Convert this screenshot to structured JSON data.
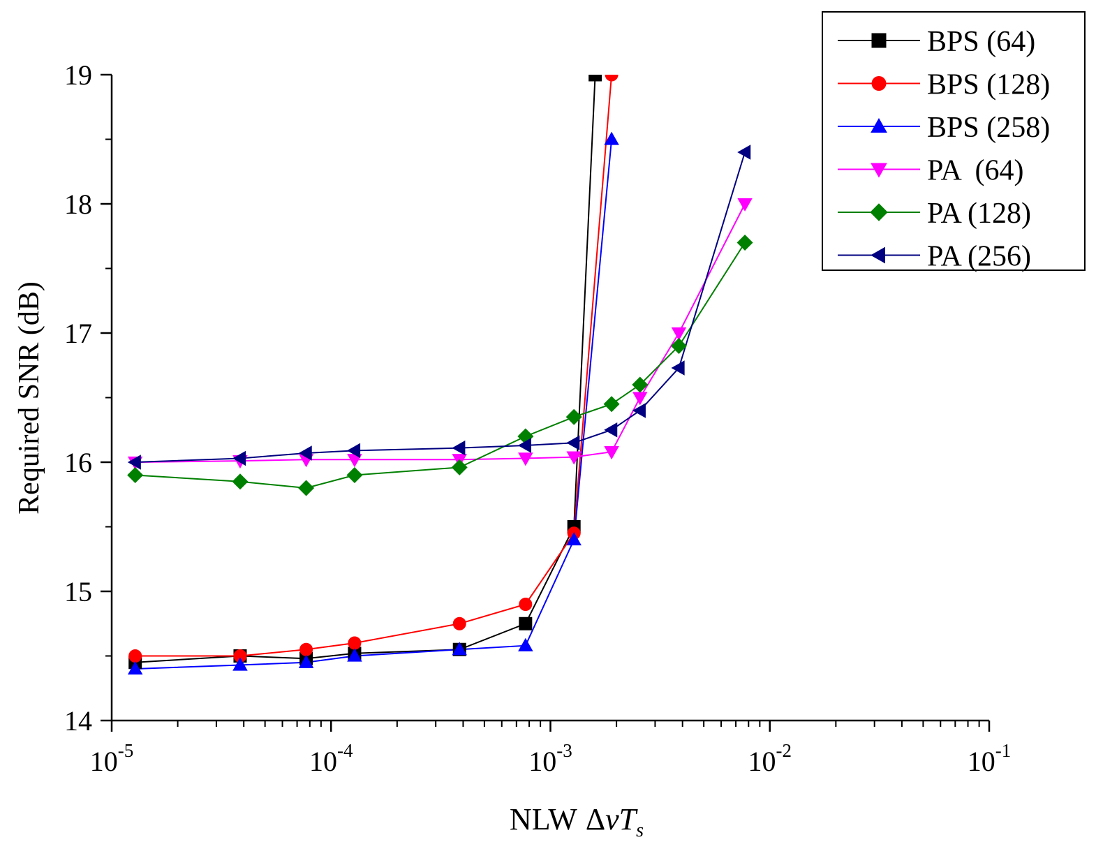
{
  "chart_data": {
    "type": "line",
    "title": "",
    "xlabel_prefix": "NLW",
    "xlabel_symbol_delta": "Δ",
    "xlabel_symbol_nu": "v",
    "xlabel_symbol_T": "T",
    "xlabel_symbol_sub": "s",
    "ylabel": "Required SNR (dB)",
    "xscale": "log",
    "xlim": [
      1e-05,
      0.1
    ],
    "ylim": [
      14,
      19
    ],
    "x_ticks": [
      {
        "base": "10",
        "exp": "-5"
      },
      {
        "base": "10",
        "exp": "-4"
      },
      {
        "base": "10",
        "exp": "-3"
      },
      {
        "base": "10",
        "exp": "-2"
      },
      {
        "base": "10",
        "exp": "-1"
      }
    ],
    "y_ticks": [
      "14",
      "15",
      "16",
      "17",
      "18",
      "19"
    ],
    "grid": false,
    "legend_position": "top-right",
    "series": [
      {
        "name": "BPS (64)",
        "color": "#000000",
        "marker": "square",
        "points": [
          [
            1.28e-05,
            14.45
          ],
          [
            3.85e-05,
            14.5
          ],
          [
            7.7e-05,
            14.48
          ],
          [
            0.000128,
            14.52
          ],
          [
            0.000385,
            14.55
          ],
          [
            0.00077,
            14.75
          ],
          [
            0.00128,
            15.5
          ],
          [
            0.0016,
            19.0
          ]
        ]
      },
      {
        "name": "BPS (128)",
        "color": "#ff0000",
        "marker": "circle",
        "points": [
          [
            1.28e-05,
            14.5
          ],
          [
            3.85e-05,
            14.5
          ],
          [
            7.7e-05,
            14.55
          ],
          [
            0.000128,
            14.6
          ],
          [
            0.000385,
            14.75
          ],
          [
            0.00077,
            14.9
          ],
          [
            0.00128,
            15.45
          ],
          [
            0.0019,
            19.0
          ]
        ]
      },
      {
        "name": "BPS (258)",
        "color": "#0000ff",
        "marker": "triangle-up",
        "points": [
          [
            1.28e-05,
            14.4
          ],
          [
            3.85e-05,
            14.43
          ],
          [
            7.7e-05,
            14.45
          ],
          [
            0.000128,
            14.5
          ],
          [
            0.000385,
            14.55
          ],
          [
            0.00077,
            14.58
          ],
          [
            0.00128,
            15.4
          ],
          [
            0.0019,
            18.5
          ]
        ]
      },
      {
        "name": "PA  (64)",
        "color": "#ff00ff",
        "marker": "triangle-down",
        "points": [
          [
            1.28e-05,
            16.0
          ],
          [
            3.85e-05,
            16.01
          ],
          [
            7.7e-05,
            16.02
          ],
          [
            0.000128,
            16.02
          ],
          [
            0.000385,
            16.02
          ],
          [
            0.00077,
            16.03
          ],
          [
            0.00128,
            16.04
          ],
          [
            0.0019,
            16.08
          ],
          [
            0.00256,
            16.5
          ],
          [
            0.00385,
            17.0
          ],
          [
            0.0077,
            18.0
          ]
        ]
      },
      {
        "name": "PA (128)",
        "color": "#008000",
        "marker": "diamond",
        "points": [
          [
            1.28e-05,
            15.9
          ],
          [
            3.85e-05,
            15.85
          ],
          [
            7.7e-05,
            15.8
          ],
          [
            0.000128,
            15.9
          ],
          [
            0.000385,
            15.96
          ],
          [
            0.00077,
            16.2
          ],
          [
            0.00128,
            16.35
          ],
          [
            0.0019,
            16.45
          ],
          [
            0.00256,
            16.6
          ],
          [
            0.00385,
            16.9
          ],
          [
            0.0077,
            17.7
          ]
        ]
      },
      {
        "name": "PA (256)",
        "color": "#000080",
        "marker": "triangle-left",
        "points": [
          [
            1.28e-05,
            16.0
          ],
          [
            3.85e-05,
            16.03
          ],
          [
            7.7e-05,
            16.07
          ],
          [
            0.000128,
            16.09
          ],
          [
            0.000385,
            16.11
          ],
          [
            0.00077,
            16.13
          ],
          [
            0.00128,
            16.15
          ],
          [
            0.0019,
            16.25
          ],
          [
            0.00256,
            16.4
          ],
          [
            0.00385,
            16.73
          ],
          [
            0.0077,
            18.4
          ]
        ]
      }
    ]
  }
}
